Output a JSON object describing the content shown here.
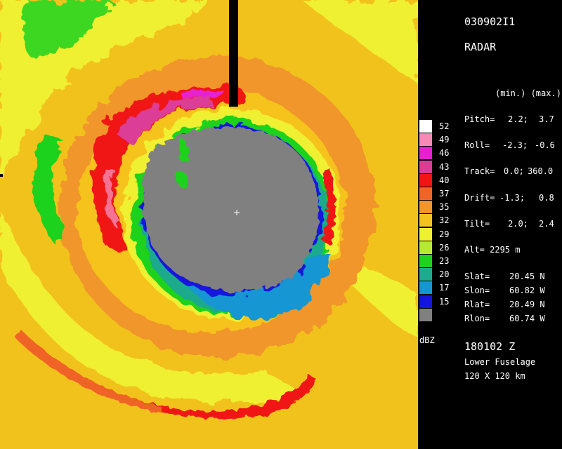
{
  "header": {
    "case_id": "030902I1",
    "product": "RADAR"
  },
  "stats": {
    "columns_label": "(min.) (max.)",
    "rows": [
      {
        "label": "Pitch=",
        "min": "2.2;",
        "max": "3.7"
      },
      {
        "label": "Roll=",
        "min": "-2.3;",
        "max": "-0.6"
      },
      {
        "label": "Track=",
        "min": "0.0;",
        "max": "360.0"
      },
      {
        "label": "Drift=",
        "min": "-1.3;",
        "max": "0.8"
      },
      {
        "label": "Tilt=",
        "min": "2.0;",
        "max": "2.4"
      }
    ],
    "altitude": "Alt= 2295 m"
  },
  "position": [
    {
      "label": "Slat=",
      "value": "20.45 N"
    },
    {
      "label": "Slon=",
      "value": "60.82 W"
    },
    {
      "label": "Rlat=",
      "value": "20.49 N"
    },
    {
      "label": "Rlon=",
      "value": "60.74 W"
    }
  ],
  "footer": {
    "time": "180102 Z",
    "antenna": "Lower Fuselage",
    "domain_size": "120 X 120 km"
  },
  "legend": {
    "unit": "dBZ",
    "levels": [
      {
        "value": "52",
        "color": "#ffffff"
      },
      {
        "value": "49",
        "color": "#f58ab4"
      },
      {
        "value": "46",
        "color": "#e620d2"
      },
      {
        "value": "43",
        "color": "#dc3c96"
      },
      {
        "value": "40",
        "color": "#f01414"
      },
      {
        "value": "37",
        "color": "#f06428"
      },
      {
        "value": "35",
        "color": "#f0962a"
      },
      {
        "value": "32",
        "color": "#f5c31e"
      },
      {
        "value": "29",
        "color": "#f0f032"
      },
      {
        "value": "26",
        "color": "#b4eb32"
      },
      {
        "value": "23",
        "color": "#1ed21e"
      },
      {
        "value": "20",
        "color": "#1eaa8c"
      },
      {
        "value": "17",
        "color": "#1496d2"
      },
      {
        "value": "15",
        "color": "#1414dc"
      },
      {
        "value": "",
        "color": "#808080"
      }
    ]
  }
}
